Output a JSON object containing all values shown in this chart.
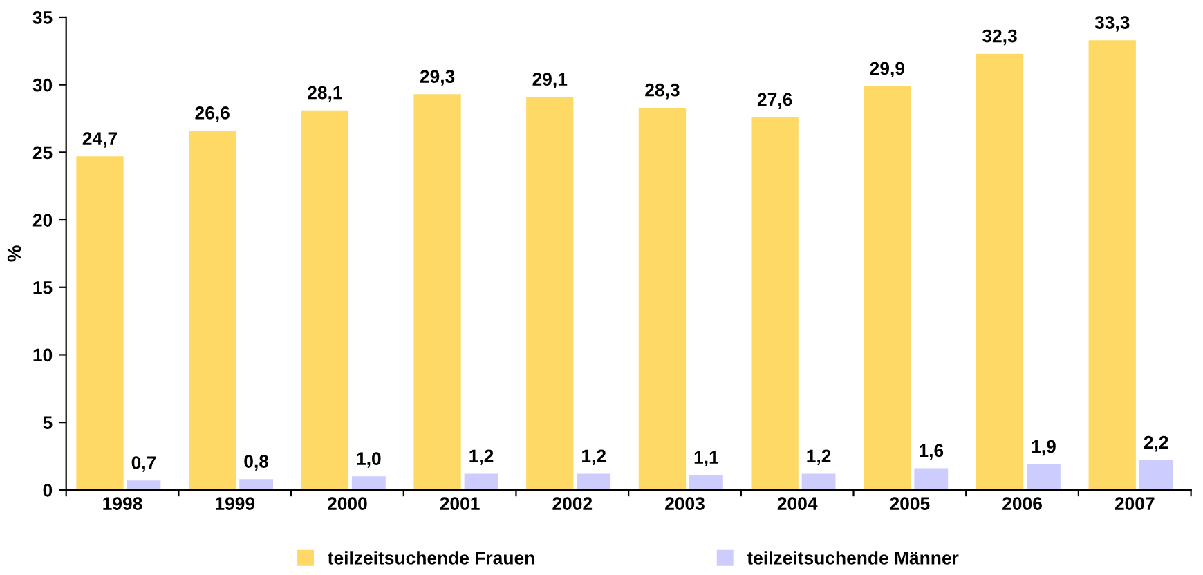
{
  "chart_data": {
    "type": "bar",
    "ylabel": "%",
    "categories": [
      "1998",
      "1999",
      "2000",
      "2001",
      "2002",
      "2003",
      "2004",
      "2005",
      "2006",
      "2007"
    ],
    "series": [
      {
        "name": "teilzeitsuchende Frauen",
        "color": "#ffd966",
        "values": [
          24.7,
          26.6,
          28.1,
          29.3,
          29.1,
          28.3,
          27.6,
          29.9,
          32.3,
          33.3
        ],
        "value_labels": [
          "24,7",
          "26,6",
          "28,1",
          "29,3",
          "29,1",
          "28,3",
          "27,6",
          "29,9",
          "32,3",
          "33,3"
        ]
      },
      {
        "name": "teilzeitsuchende Männer",
        "color": "#ccccff",
        "values": [
          0.7,
          0.8,
          1.0,
          1.2,
          1.2,
          1.1,
          1.2,
          1.6,
          1.9,
          2.2
        ],
        "value_labels": [
          "0,7",
          "0,8",
          "1,0",
          "1,2",
          "1,2",
          "1,1",
          "1,2",
          "1,6",
          "1,9",
          "2,2"
        ]
      }
    ],
    "ylim": [
      0,
      35
    ],
    "yticks": [
      0,
      5,
      10,
      15,
      20,
      25,
      30,
      35
    ],
    "grid": false,
    "legend": "bottom"
  }
}
